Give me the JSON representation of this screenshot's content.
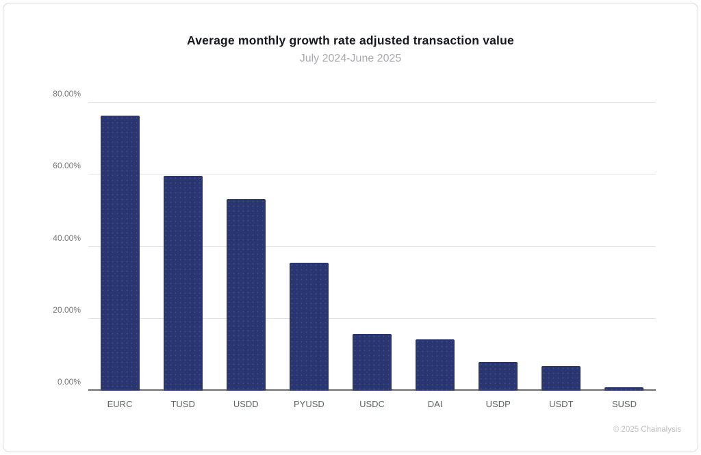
{
  "page": {
    "footer": "© 2025 Chainalysis"
  },
  "chart_data": {
    "type": "bar",
    "title": "Average monthly growth rate adjusted transaction value",
    "subtitle": "July 2024-June 2025",
    "categories": [
      "EURC",
      "TUSD",
      "USDD",
      "PYUSD",
      "USDC",
      "DAI",
      "USDP",
      "USDT",
      "SUSD"
    ],
    "values": [
      76.3,
      59.6,
      53.2,
      35.6,
      15.7,
      14.3,
      7.9,
      6.8,
      0.9
    ],
    "unit": "%",
    "xlabel": "",
    "ylabel": "",
    "ylim": [
      0,
      80
    ],
    "ytick_values": [
      80,
      60,
      40,
      20,
      0
    ],
    "ytick_labels": [
      "80.00%",
      "60.00%",
      "40.00%",
      "20.00%",
      "0.00%"
    ],
    "grid": true,
    "legend": false,
    "bar_color": "#293672"
  }
}
